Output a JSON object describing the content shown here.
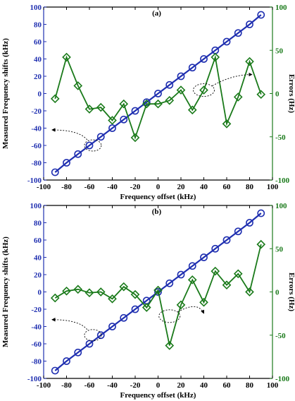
{
  "colors": {
    "measured": "#1f2fb0",
    "errors": "#1a7a1a",
    "axis": "#000000"
  },
  "chart_data": [
    {
      "type": "line",
      "panel_label": "(a)",
      "xlabel": "Frequency offset (kHz)",
      "ylabel": "Measured Frequency shifts (kHz)",
      "ylabel_right": "Errors (Hz)",
      "xlim": [
        -100,
        100
      ],
      "ylim": [
        -100,
        100
      ],
      "ylim_right": [
        -100,
        100
      ],
      "xticks": [
        "-100",
        "-80",
        "-60",
        "-40",
        "-20",
        "0",
        "20",
        "40",
        "60",
        "80",
        "100"
      ],
      "yticks": [
        "-100",
        "-80",
        "-60",
        "-40",
        "-20",
        "0",
        "20",
        "40",
        "60",
        "80",
        "100"
      ],
      "yticks_right": [
        "-100",
        "-50",
        "0",
        "50",
        "100"
      ],
      "series": [
        {
          "axis": "left",
          "marker": "circle",
          "x": [
            -90,
            -80,
            -70,
            -60,
            -50,
            -40,
            -30,
            -20,
            -10,
            0,
            10,
            20,
            30,
            40,
            50,
            60,
            70,
            80,
            90
          ],
          "values": [
            -91,
            -80,
            -70,
            -60,
            -50,
            -40,
            -30,
            -20,
            -10,
            0,
            10,
            20,
            30,
            40,
            50,
            60,
            70,
            80,
            91
          ]
        },
        {
          "axis": "right",
          "marker": "diamond",
          "x": [
            -90,
            -80,
            -70,
            -60,
            -50,
            -40,
            -30,
            -20,
            -10,
            0,
            10,
            20,
            30,
            40,
            50,
            60,
            70,
            80,
            90
          ],
          "values": [
            -6,
            42,
            9,
            -18,
            -16,
            -31,
            -12,
            -51,
            -12,
            -12,
            -8,
            4,
            -19,
            4,
            42,
            -35,
            -4,
            37,
            -1
          ]
        }
      ]
    },
    {
      "type": "line",
      "panel_label": "(b)",
      "xlabel": "Frequency offset (kHz)",
      "ylabel": "Measured Frequency shifts (kHz)",
      "ylabel_right": "Errors (Hz)",
      "xlim": [
        -100,
        100
      ],
      "ylim": [
        -100,
        100
      ],
      "ylim_right": [
        -100,
        100
      ],
      "xticks": [
        "-100",
        "-80",
        "-60",
        "-40",
        "-20",
        "0",
        "20",
        "40",
        "60",
        "80",
        "100"
      ],
      "yticks": [
        "-100",
        "-80",
        "-60",
        "-40",
        "-20",
        "0",
        "20",
        "40",
        "60",
        "80",
        "100"
      ],
      "yticks_right": [
        "-100",
        "-50",
        "0",
        "50",
        "100"
      ],
      "series": [
        {
          "axis": "left",
          "marker": "circle",
          "x": [
            -90,
            -80,
            -70,
            -60,
            -50,
            -40,
            -30,
            -20,
            -10,
            0,
            10,
            20,
            30,
            40,
            50,
            60,
            70,
            80,
            90
          ],
          "values": [
            -91,
            -80,
            -70,
            -60,
            -50,
            -40,
            -30,
            -20,
            -10,
            0,
            10,
            20,
            30,
            40,
            50,
            60,
            70,
            80,
            91
          ]
        },
        {
          "axis": "right",
          "marker": "diamond",
          "x": [
            -90,
            -80,
            -70,
            -60,
            -50,
            -40,
            -30,
            -20,
            -10,
            0,
            10,
            20,
            30,
            40,
            50,
            60,
            70,
            80,
            90
          ],
          "values": [
            -7,
            1,
            3,
            -1,
            0,
            -8,
            6,
            -3,
            -18,
            2,
            -62,
            -15,
            14,
            -12,
            24,
            8,
            21,
            0,
            55
          ]
        }
      ]
    }
  ]
}
